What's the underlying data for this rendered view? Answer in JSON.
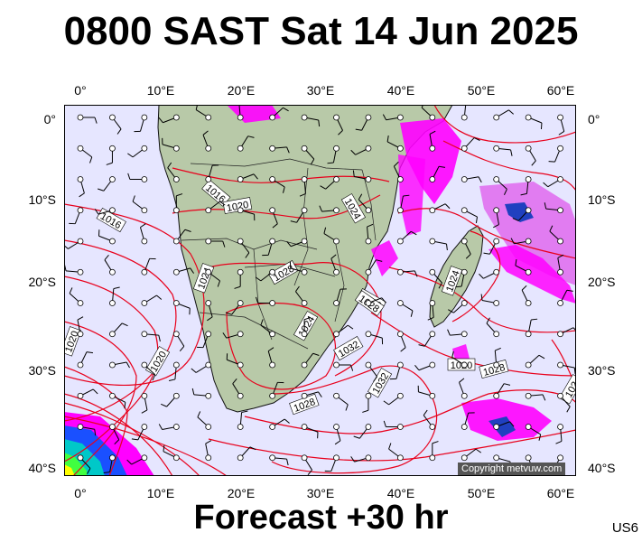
{
  "title": "0800 SAST Sat 14 Jun 2025",
  "subtitle": "Forecast +30 hr",
  "model_code": "US6",
  "copyright": "Copyright metvuw.com",
  "lon_labels": [
    "0°",
    "10°E",
    "20°E",
    "30°E",
    "40°E",
    "50°E",
    "60°E"
  ],
  "lat_labels": [
    "0°",
    "10°S",
    "20°S",
    "30°S",
    "40°S"
  ],
  "isobar_labels": [
    "1016",
    "1020",
    "1016",
    "1024",
    "1028",
    "1024",
    "1024",
    "1028",
    "1032",
    "1024",
    "1020",
    "1020",
    "1032",
    "1028",
    "1028",
    "1028",
    "1020",
    "102"
  ],
  "colors": {
    "ocean": "#e6e6ff",
    "land": "#b8c9a8",
    "isobar": "#e8001c",
    "precip_heavy": "#ff00ff",
    "precip_light": "#e070f0",
    "precip_core": "#2040c0",
    "coast": "#111111"
  },
  "icons": [
    "wind-barb-icon",
    "station-circle-icon"
  ]
}
